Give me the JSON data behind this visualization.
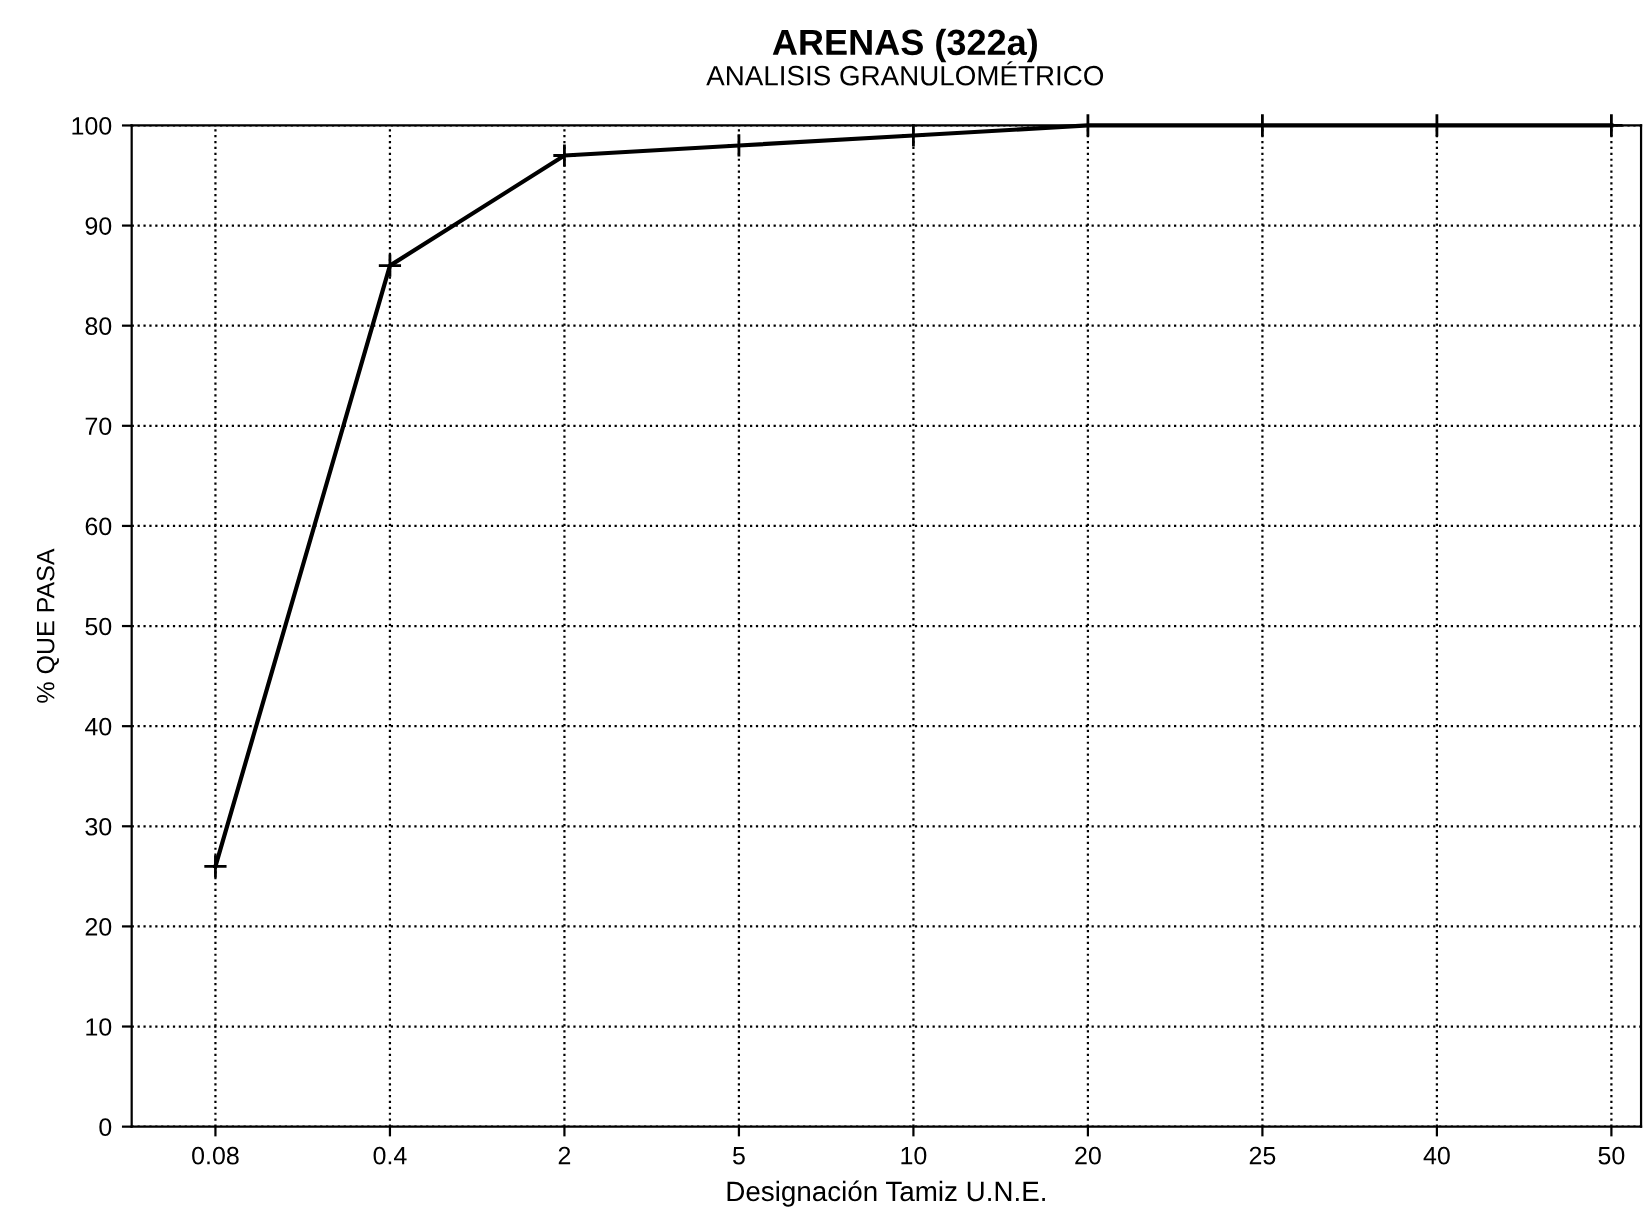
{
  "chart_data": {
    "type": "line",
    "title": "ARENAS (322a)",
    "subtitle": "ANALISIS GRANULOMÉTRICO",
    "xlabel": "Designación Tamiz U.N.E.",
    "ylabel": "% QUE PASA",
    "categories": [
      "0.08",
      "0.4",
      "2",
      "5",
      "10",
      "20",
      "25",
      "40",
      "50"
    ],
    "series": [
      {
        "color": "#000000",
        "values": [
          26,
          86,
          97,
          98,
          99,
          100,
          100,
          100,
          100
        ]
      }
    ],
    "ylim": [
      0,
      100
    ],
    "yticks": [
      0,
      10,
      20,
      30,
      40,
      50,
      60,
      70,
      80,
      90,
      100
    ],
    "grid": true,
    "marker": "cross",
    "line_style": "solid"
  }
}
